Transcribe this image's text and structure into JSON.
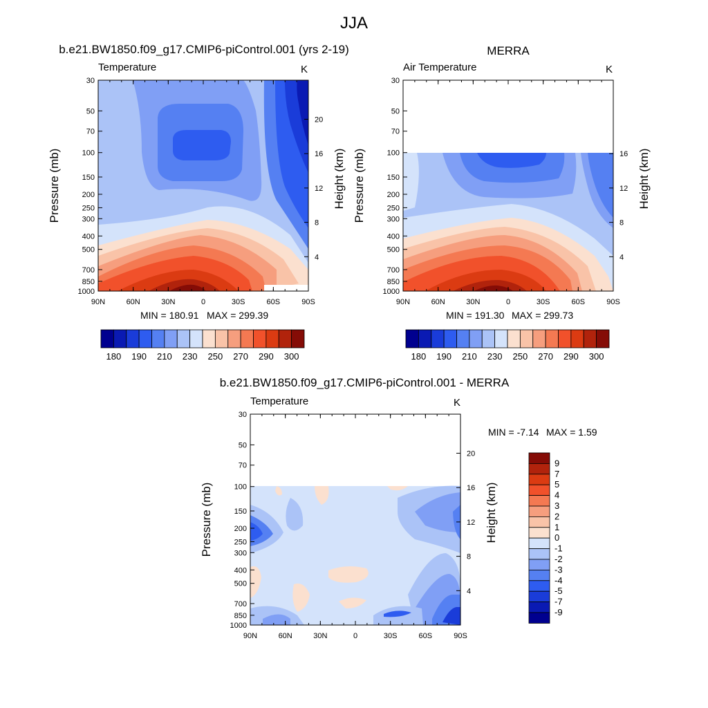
{
  "figure": {
    "title": "JJA",
    "colors": {
      "absolute_levels": [
        "#00008f",
        "#0a1ab3",
        "#1a3cd9",
        "#2e5cf0",
        "#5580f2",
        "#809ff5",
        "#abc3f7",
        "#d4e3fb",
        "#fbe0cf",
        "#f9c3a8",
        "#f69e7e",
        "#f47952",
        "#f1512b",
        "#db3b12",
        "#b1230c",
        "#850c06"
      ],
      "diff_levels": [
        "#00008f",
        "#0a1ab3",
        "#1a3cd9",
        "#2e5cf0",
        "#5580f2",
        "#809ff5",
        "#abc3f7",
        "#d4e3fb",
        "#fbe0cf",
        "#f9c3a8",
        "#f69e7e",
        "#f47952",
        "#f1512b",
        "#db3b12",
        "#b1230c",
        "#850c06"
      ]
    }
  },
  "chart_data": [
    {
      "id": "model",
      "type": "heatmap",
      "title": "b.e21.BW1850.f09_g17.CMIP6-piControl.001 (yrs 2-19)",
      "left_string": "Temperature",
      "right_string": "K",
      "xlabel": "",
      "ylabel": "Pressure (mb)",
      "ylabel_right": "Height (km)",
      "x_tick_labels": [
        "90N",
        "60N",
        "30N",
        "0",
        "30S",
        "60S",
        "90S"
      ],
      "y_ticks": [
        30,
        50,
        70,
        100,
        150,
        200,
        250,
        300,
        400,
        500,
        700,
        850,
        1000
      ],
      "y_right_ticks": [
        20,
        16,
        12,
        8,
        4
      ],
      "ylim": [
        30,
        1000
      ],
      "xlim": [
        90,
        -90
      ],
      "min_label": "MIN = 180.91",
      "max_label": "MAX = 299.39",
      "min": 180.91,
      "max": 299.39,
      "data_top_pressure": 30,
      "colorbar_labels": [
        "180",
        "190",
        "210",
        "230",
        "250",
        "270",
        "290",
        "300"
      ]
    },
    {
      "id": "obs",
      "type": "heatmap",
      "title": "MERRA",
      "left_string": "Air Temperature",
      "right_string": "K",
      "xlabel": "",
      "ylabel": "Pressure (mb)",
      "ylabel_right": "Height (km)",
      "x_tick_labels": [
        "90N",
        "60N",
        "30N",
        "0",
        "30S",
        "60S",
        "90S"
      ],
      "y_ticks": [
        30,
        50,
        70,
        100,
        150,
        200,
        250,
        300,
        400,
        500,
        700,
        850,
        1000
      ],
      "y_right_ticks": [
        16,
        12,
        8,
        4
      ],
      "ylim": [
        30,
        1000
      ],
      "xlim": [
        90,
        -90
      ],
      "min_label": "MIN = 191.30",
      "max_label": "MAX = 299.73",
      "min": 191.3,
      "max": 299.73,
      "data_top_pressure": 100,
      "colorbar_labels": [
        "180",
        "190",
        "210",
        "230",
        "250",
        "270",
        "290",
        "300"
      ]
    },
    {
      "id": "diff",
      "type": "heatmap",
      "title": "b.e21.BW1850.f09_g17.CMIP6-piControl.001 - MERRA",
      "left_string": "Temperature",
      "right_string": "K",
      "xlabel": "",
      "ylabel": "Pressure (mb)",
      "ylabel_right": "Height (km)",
      "x_tick_labels": [
        "90N",
        "60N",
        "30N",
        "0",
        "30S",
        "60S",
        "90S"
      ],
      "y_ticks": [
        30,
        50,
        70,
        100,
        150,
        200,
        250,
        300,
        400,
        500,
        700,
        850,
        1000
      ],
      "y_right_ticks": [
        20,
        16,
        12,
        8,
        4
      ],
      "ylim": [
        30,
        1000
      ],
      "xlim": [
        90,
        -90
      ],
      "min_label": "MIN =  -7.14",
      "max_label": "MAX =   1.59",
      "min": -7.14,
      "max": 1.59,
      "data_top_pressure": 100,
      "colorbar_labels": [
        "9",
        "7",
        "5",
        "4",
        "3",
        "2",
        "1",
        "0",
        "-1",
        "-2",
        "-3",
        "-4",
        "-5",
        "-7",
        "-9"
      ]
    }
  ]
}
